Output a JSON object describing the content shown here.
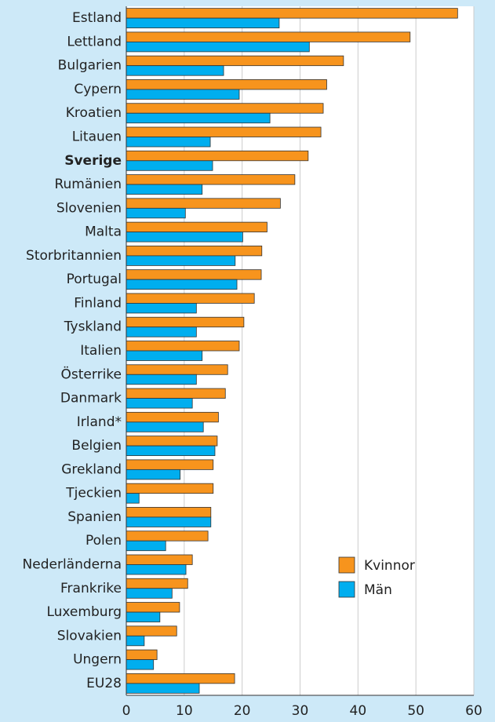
{
  "chart_data": {
    "type": "hbar",
    "categories": [
      "Estland",
      "Lettland",
      "Bulgarien",
      "Cypern",
      "Kroatien",
      "Litauen",
      "Sverige",
      "Rumänien",
      "Slovenien",
      "Malta",
      "Storbritannien",
      "Portugal",
      "Finland",
      "Tyskland",
      "Italien",
      "Österrike",
      "Danmark",
      "Irland*",
      "Belgien",
      "Grekland",
      "Tjeckien",
      "Spanien",
      "Polen",
      "Nederländerna",
      "Frankrike",
      "Luxemburg",
      "Slovakien",
      "Ungern",
      "EU28"
    ],
    "highlight_category": "Sverige",
    "series": [
      {
        "name": "Kvinnor",
        "color": "#f7941d",
        "values": [
          57.2,
          49.0,
          37.5,
          34.6,
          34.0,
          33.6,
          31.4,
          29.1,
          26.6,
          24.3,
          23.4,
          23.3,
          22.1,
          20.3,
          19.5,
          17.5,
          17.1,
          15.9,
          15.7,
          15.0,
          15.0,
          14.6,
          14.1,
          11.4,
          10.6,
          9.2,
          8.7,
          5.3,
          18.7
        ]
      },
      {
        "name": "Män",
        "color": "#00aeef",
        "values": [
          26.4,
          31.6,
          16.8,
          19.5,
          24.8,
          14.5,
          14.9,
          13.1,
          10.2,
          20.1,
          18.8,
          19.1,
          12.1,
          12.1,
          13.1,
          12.1,
          11.4,
          13.3,
          15.3,
          9.3,
          2.2,
          14.6,
          6.8,
          10.3,
          7.9,
          5.8,
          3.1,
          4.7,
          12.6
        ]
      }
    ],
    "xlim": [
      0,
      60
    ],
    "xticks": [
      0,
      10,
      20,
      30,
      40,
      50,
      60
    ],
    "grid": true,
    "legend": "lower right"
  }
}
